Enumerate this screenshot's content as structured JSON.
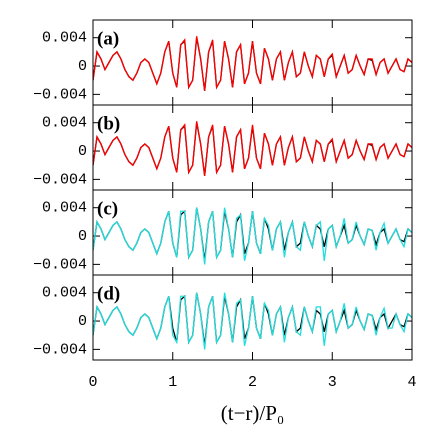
{
  "chart_data": [
    {
      "type": "line",
      "label": "(a)",
      "x": [
        0,
        0.05,
        0.1,
        0.15,
        0.2,
        0.25,
        0.3,
        0.35,
        0.4,
        0.45,
        0.5,
        0.55,
        0.6,
        0.65,
        0.7,
        0.75,
        0.8,
        0.85,
        0.9,
        0.95,
        1,
        1.05,
        1.1,
        1.15,
        1.2,
        1.25,
        1.3,
        1.35,
        1.4,
        1.45,
        1.5,
        1.55,
        1.6,
        1.65,
        1.7,
        1.75,
        1.8,
        1.85,
        1.9,
        1.95,
        2,
        2.05,
        2.1,
        2.15,
        2.2,
        2.25,
        2.3,
        2.35,
        2.4,
        2.45,
        2.5,
        2.55,
        2.6,
        2.65,
        2.7,
        2.75,
        2.8,
        2.85,
        2.9,
        2.95,
        3,
        3.05,
        3.1,
        3.15,
        3.2,
        3.25,
        3.3,
        3.35,
        3.4,
        3.45,
        3.5,
        3.55,
        3.6,
        3.65,
        3.7,
        3.75,
        3.8,
        3.85,
        3.9,
        3.95,
        4
      ],
      "series": [
        {
          "color": "#000000",
          "values": [
            -0.002,
            0.002,
            0.001,
            -0.0005,
            0.0005,
            0.0015,
            0.002,
            0.001,
            -0.0005,
            -0.0015,
            -0.002,
            -0.001,
            0.0005,
            0.001,
            0.0005,
            -0.001,
            -0.0025,
            -0.001,
            0.002,
            0.0035,
            -0.001,
            -0.003,
            0.003,
            0.0035,
            -0.003,
            -0.002,
            0.004,
            0.001,
            -0.0035,
            0.002,
            0.0035,
            -0.003,
            -0.002,
            0.0035,
            0.001,
            -0.003,
            0.002,
            0.003,
            -0.0025,
            -0.001,
            0.0035,
            -0.001,
            -0.0025,
            0.0025,
            0.001,
            -0.002,
            0.001,
            0.002,
            -0.002,
            0.0005,
            0.002,
            -0.0015,
            -0.001,
            0.002,
            0,
            -0.0015,
            0.0015,
            0.001,
            -0.0015,
            0.001,
            0.0015,
            -0.0015,
            0,
            0.0015,
            -0.001,
            -0.0005,
            0.0015,
            0,
            -0.0012,
            0.001,
            0.0008,
            -0.0012,
            0.0005,
            0.001,
            -0.001,
            0,
            0.001,
            -0.0005,
            -0.0008,
            0.001,
            0.0005
          ]
        },
        {
          "color": "#ff0000",
          "values": [
            -0.002,
            0.002,
            0.001,
            -0.0005,
            0.0005,
            0.0015,
            0.002,
            0.001,
            -0.0005,
            -0.0015,
            -0.002,
            -0.001,
            0.0005,
            0.001,
            0.0005,
            -0.001,
            -0.0025,
            -0.001,
            0.002,
            0.0035,
            -0.001,
            -0.003,
            0.003,
            0.0037,
            -0.003,
            -0.002,
            0.0042,
            0.001,
            -0.0035,
            0.002,
            0.0037,
            -0.003,
            -0.002,
            0.0035,
            0.001,
            -0.003,
            0.002,
            0.003,
            -0.0025,
            -0.001,
            0.0035,
            -0.001,
            -0.0025,
            0.0025,
            0.001,
            -0.002,
            0.001,
            0.002,
            -0.002,
            0.0005,
            0.002,
            -0.0015,
            -0.001,
            0.002,
            0,
            -0.0015,
            0.0015,
            0.001,
            -0.0015,
            0.001,
            0.0017,
            -0.0015,
            0,
            0.0015,
            -0.001,
            -0.0005,
            0.0015,
            0,
            -0.0012,
            0.001,
            0.001,
            -0.0012,
            0.0005,
            0.001,
            -0.001,
            0,
            0.001,
            -0.0005,
            -0.0008,
            0.001,
            0.0005
          ]
        }
      ],
      "xlim": [
        0,
        4
      ],
      "xticks": [
        0,
        1,
        2,
        3,
        4
      ],
      "ylim": [
        -0.0055,
        0.0065
      ],
      "yticks": [
        {
          "value": -0.004,
          "label": "−0.004"
        },
        0,
        0.004
      ]
    },
    {
      "type": "line",
      "label": "(b)",
      "x": [
        0,
        0.05,
        0.1,
        0.15,
        0.2,
        0.25,
        0.3,
        0.35,
        0.4,
        0.45,
        0.5,
        0.55,
        0.6,
        0.65,
        0.7,
        0.75,
        0.8,
        0.85,
        0.9,
        0.95,
        1,
        1.05,
        1.1,
        1.15,
        1.2,
        1.25,
        1.3,
        1.35,
        1.4,
        1.45,
        1.5,
        1.55,
        1.6,
        1.65,
        1.7,
        1.75,
        1.8,
        1.85,
        1.9,
        1.95,
        2,
        2.05,
        2.1,
        2.15,
        2.2,
        2.25,
        2.3,
        2.35,
        2.4,
        2.45,
        2.5,
        2.55,
        2.6,
        2.65,
        2.7,
        2.75,
        2.8,
        2.85,
        2.9,
        2.95,
        3,
        3.05,
        3.1,
        3.15,
        3.2,
        3.25,
        3.3,
        3.35,
        3.4,
        3.45,
        3.5,
        3.55,
        3.6,
        3.65,
        3.7,
        3.75,
        3.8,
        3.85,
        3.9,
        3.95,
        4
      ],
      "series": [
        {
          "color": "#000000",
          "values": [
            -0.002,
            0.002,
            0.001,
            -0.0005,
            0.0005,
            0.0015,
            0.002,
            0.001,
            -0.0005,
            -0.0015,
            -0.002,
            -0.001,
            0.0005,
            0.001,
            0.0005,
            -0.001,
            -0.0025,
            -0.001,
            0.002,
            0.0035,
            -0.001,
            -0.003,
            0.003,
            0.0035,
            -0.003,
            -0.002,
            0.004,
            0.001,
            -0.0035,
            0.002,
            0.0035,
            -0.003,
            -0.002,
            0.0035,
            0.001,
            -0.003,
            0.002,
            0.003,
            -0.0025,
            -0.001,
            0.0035,
            -0.001,
            -0.0025,
            0.0025,
            0.001,
            -0.002,
            0.001,
            0.002,
            -0.002,
            0.0005,
            0.002,
            -0.0015,
            -0.001,
            0.002,
            0,
            -0.0015,
            0.0015,
            0.001,
            -0.0015,
            0.001,
            0.0015,
            -0.0015,
            0,
            0.0015,
            -0.001,
            -0.0005,
            0.0015,
            0,
            -0.0012,
            0.001,
            0.0008,
            -0.0012,
            0.0005,
            0.001,
            -0.001,
            0,
            0.001,
            -0.0005,
            -0.0008,
            0.001,
            0.0005
          ]
        },
        {
          "color": "#ff0000",
          "values": [
            -0.002,
            0.002,
            0.001,
            -0.0005,
            0.0005,
            0.0015,
            0.002,
            0.001,
            -0.0005,
            -0.0015,
            -0.002,
            -0.001,
            0.0005,
            0.001,
            0.0005,
            -0.001,
            -0.0025,
            -0.001,
            0.002,
            0.0035,
            -0.001,
            -0.003,
            0.003,
            0.0037,
            -0.003,
            -0.002,
            0.0042,
            0.001,
            -0.0035,
            0.002,
            0.0037,
            -0.003,
            -0.002,
            0.0035,
            0.001,
            -0.003,
            0.002,
            0.003,
            -0.0025,
            -0.001,
            0.0037,
            -0.001,
            -0.0025,
            0.0025,
            0.001,
            -0.002,
            0.001,
            0.002,
            -0.002,
            0.0005,
            0.002,
            -0.0015,
            -0.001,
            0.002,
            0,
            -0.0015,
            0.0015,
            0.001,
            -0.0015,
            0.001,
            0.0017,
            -0.0015,
            0,
            0.0015,
            -0.001,
            -0.0005,
            0.0015,
            0,
            -0.0012,
            0.001,
            0.001,
            -0.0012,
            0.0005,
            0.001,
            -0.001,
            0,
            0.001,
            -0.0005,
            -0.0008,
            0.001,
            0.0005
          ]
        }
      ],
      "xlim": [
        0,
        4
      ],
      "xticks": [
        0,
        1,
        2,
        3,
        4
      ],
      "ylim": [
        -0.0055,
        0.0065
      ],
      "yticks": [
        {
          "value": -0.004,
          "label": "−0.004"
        },
        0,
        0.004
      ]
    },
    {
      "type": "line",
      "label": "(c)",
      "x": [
        0,
        0.05,
        0.1,
        0.15,
        0.2,
        0.25,
        0.3,
        0.35,
        0.4,
        0.45,
        0.5,
        0.55,
        0.6,
        0.65,
        0.7,
        0.75,
        0.8,
        0.85,
        0.9,
        0.95,
        1,
        1.05,
        1.1,
        1.15,
        1.2,
        1.25,
        1.3,
        1.35,
        1.4,
        1.45,
        1.5,
        1.55,
        1.6,
        1.65,
        1.7,
        1.75,
        1.8,
        1.85,
        1.9,
        1.95,
        2,
        2.05,
        2.1,
        2.15,
        2.2,
        2.25,
        2.3,
        2.35,
        2.4,
        2.45,
        2.5,
        2.55,
        2.6,
        2.65,
        2.7,
        2.75,
        2.8,
        2.85,
        2.9,
        2.95,
        3,
        3.05,
        3.1,
        3.15,
        3.2,
        3.25,
        3.3,
        3.35,
        3.4,
        3.45,
        3.5,
        3.55,
        3.6,
        3.65,
        3.7,
        3.75,
        3.8,
        3.85,
        3.9,
        3.95,
        4
      ],
      "series": [
        {
          "color": "#000000",
          "values": [
            -0.002,
            0.002,
            0.001,
            -0.0005,
            0.0005,
            0.0015,
            0.002,
            0.001,
            -0.0005,
            -0.0015,
            -0.002,
            -0.001,
            0.0005,
            0.001,
            0.0005,
            -0.001,
            -0.0025,
            -0.001,
            0.002,
            0.0035,
            -0.001,
            -0.003,
            0.003,
            0.0035,
            -0.003,
            -0.002,
            0.004,
            0.001,
            -0.0035,
            0.002,
            0.0035,
            -0.003,
            -0.002,
            0.0035,
            0.001,
            -0.003,
            0.002,
            0.003,
            -0.0025,
            -0.001,
            0.0035,
            -0.001,
            -0.0025,
            0.0025,
            0.001,
            -0.002,
            0.001,
            0.002,
            -0.002,
            0.0005,
            0.002,
            -0.0015,
            -0.001,
            0.002,
            0,
            -0.0015,
            0.0015,
            0.001,
            -0.0015,
            0.001,
            0.0015,
            -0.0015,
            0,
            0.0015,
            -0.001,
            -0.0005,
            0.0015,
            0,
            -0.0012,
            0.001,
            0.0008,
            -0.0012,
            0.0005,
            0.001,
            -0.001,
            0,
            0.001,
            -0.0005,
            -0.0008,
            0.001,
            0.0005
          ]
        },
        {
          "color": "#22dddd",
          "values": [
            -0.002,
            0.002,
            0.001,
            -0.0005,
            0.0005,
            0.0015,
            0.002,
            0.001,
            -0.0005,
            -0.0015,
            -0.002,
            -0.001,
            0.0005,
            0.001,
            0.0005,
            -0.001,
            -0.0025,
            -0.001,
            0.002,
            0.0035,
            -0.001,
            -0.003,
            0.0035,
            0.0035,
            -0.003,
            -0.002,
            0.004,
            0.001,
            -0.004,
            0.002,
            0.0035,
            -0.003,
            -0.002,
            0.004,
            0.001,
            -0.003,
            0.0025,
            0.003,
            -0.0035,
            -0.001,
            0.0035,
            -0.001,
            -0.0025,
            0.0025,
            0.0015,
            -0.002,
            0.001,
            0.002,
            -0.003,
            0.0005,
            0.002,
            -0.0015,
            -0.002,
            0.002,
            0,
            -0.0015,
            0.0015,
            0.002,
            -0.0035,
            0.001,
            0.0015,
            -0.0015,
            0,
            0.0025,
            -0.001,
            -0.0005,
            0.002,
            0,
            -0.0012,
            0.001,
            0.0008,
            -0.002,
            0.0005,
            0.0018,
            -0.001,
            0,
            0.001,
            -0.0005,
            -0.0015,
            0.001,
            0.0005
          ]
        }
      ],
      "xlim": [
        0,
        4
      ],
      "xticks": [
        0,
        1,
        2,
        3,
        4
      ],
      "ylim": [
        -0.0055,
        0.0065
      ],
      "yticks": [
        {
          "value": -0.004,
          "label": "−0.004"
        },
        0,
        0.004
      ]
    },
    {
      "type": "line",
      "label": "(d)",
      "x": [
        0,
        0.05,
        0.1,
        0.15,
        0.2,
        0.25,
        0.3,
        0.35,
        0.4,
        0.45,
        0.5,
        0.55,
        0.6,
        0.65,
        0.7,
        0.75,
        0.8,
        0.85,
        0.9,
        0.95,
        1,
        1.05,
        1.1,
        1.15,
        1.2,
        1.25,
        1.3,
        1.35,
        1.4,
        1.45,
        1.5,
        1.55,
        1.6,
        1.65,
        1.7,
        1.75,
        1.8,
        1.85,
        1.9,
        1.95,
        2,
        2.05,
        2.1,
        2.15,
        2.2,
        2.25,
        2.3,
        2.35,
        2.4,
        2.45,
        2.5,
        2.55,
        2.6,
        2.65,
        2.7,
        2.75,
        2.8,
        2.85,
        2.9,
        2.95,
        3,
        3.05,
        3.1,
        3.15,
        3.2,
        3.25,
        3.3,
        3.35,
        3.4,
        3.45,
        3.5,
        3.55,
        3.6,
        3.65,
        3.7,
        3.75,
        3.8,
        3.85,
        3.9,
        3.95,
        4
      ],
      "series": [
        {
          "color": "#000000",
          "values": [
            -0.002,
            0.002,
            0.001,
            -0.0005,
            0.0005,
            0.0015,
            0.002,
            0.001,
            -0.0005,
            -0.0015,
            -0.002,
            -0.001,
            0.0005,
            0.001,
            0.0005,
            -0.001,
            -0.0025,
            -0.001,
            0.002,
            0.0035,
            -0.001,
            -0.003,
            0.003,
            0.0035,
            -0.003,
            -0.002,
            0.004,
            0.001,
            -0.0035,
            0.002,
            0.0035,
            -0.003,
            -0.002,
            0.0035,
            0.001,
            -0.003,
            0.002,
            0.003,
            -0.0025,
            -0.001,
            0.0035,
            -0.001,
            -0.0025,
            0.0025,
            0.001,
            -0.002,
            0.001,
            0.002,
            -0.002,
            0.0005,
            0.002,
            -0.0015,
            -0.001,
            0.002,
            0,
            -0.0015,
            0.0015,
            0.001,
            -0.0015,
            0.001,
            0.0015,
            -0.0015,
            0,
            0.0015,
            -0.001,
            -0.0005,
            0.0015,
            0,
            -0.0012,
            0.001,
            0.0008,
            -0.0012,
            0.0005,
            0.001,
            -0.001,
            0,
            0.001,
            -0.0005,
            -0.0008,
            0.001,
            0.0005
          ]
        },
        {
          "color": "#22dddd",
          "values": [
            -0.002,
            0.002,
            0.001,
            -0.0005,
            0.0005,
            0.0015,
            0.002,
            0.001,
            -0.0005,
            -0.0015,
            -0.002,
            -0.001,
            0.0005,
            0.001,
            0.0005,
            -0.001,
            -0.0025,
            -0.001,
            0.002,
            0.0035,
            -0.002,
            -0.003,
            0.0035,
            0.0035,
            -0.003,
            -0.002,
            0.004,
            0.001,
            -0.004,
            0.002,
            0.0035,
            -0.003,
            -0.002,
            0.004,
            0.001,
            -0.003,
            0.0025,
            0.003,
            -0.0035,
            -0.001,
            0.0035,
            -0.001,
            -0.0025,
            0.0025,
            0.0015,
            -0.002,
            0.001,
            0.002,
            -0.003,
            0.0005,
            0.002,
            -0.0015,
            -0.002,
            0.002,
            0,
            -0.0015,
            0.002,
            0.002,
            -0.0035,
            0.001,
            0.0015,
            -0.0015,
            0,
            0.0025,
            -0.001,
            -0.0005,
            0.002,
            0,
            -0.0012,
            0.001,
            0.0008,
            -0.002,
            0.0005,
            0.0018,
            -0.001,
            -0.001,
            0.001,
            -0.0005,
            -0.0015,
            0.001,
            0.0005
          ]
        }
      ],
      "xlim": [
        0,
        4
      ],
      "xticks": [
        0,
        1,
        2,
        3,
        4
      ],
      "ylim": [
        -0.0055,
        0.0065
      ],
      "yticks": [
        {
          "value": -0.004,
          "label": "−0.004"
        },
        0,
        0.004
      ],
      "xlabel": "(t−r)/P₀"
    }
  ]
}
